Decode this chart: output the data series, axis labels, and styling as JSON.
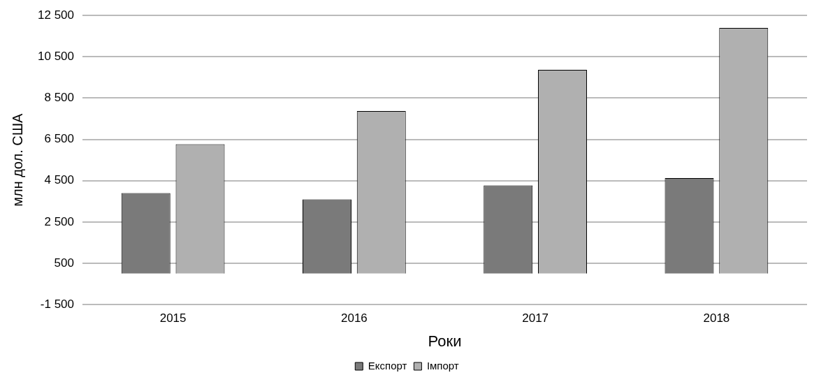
{
  "chart_data": {
    "type": "bar",
    "xlabel": "Роки",
    "ylabel": "млн дол. США",
    "categories": [
      "2015",
      "2016",
      "2017",
      "2018"
    ],
    "series": [
      {
        "name": "Експорт",
        "color": "#7a7a7a",
        "values": [
          3900,
          3600,
          4270,
          4630
        ]
      },
      {
        "name": "Імпорт",
        "color": "#b0b0b0",
        "values": [
          6270,
          7870,
          9870,
          11900
        ]
      }
    ],
    "ylim": [
      -1500,
      12500
    ],
    "yticks": [
      {
        "value": -1500,
        "label": "-1 500"
      },
      {
        "value": 500,
        "label": "500"
      },
      {
        "value": 2500,
        "label": "2 500"
      },
      {
        "value": 4500,
        "label": "4 500"
      },
      {
        "value": 6500,
        "label": "6 500"
      },
      {
        "value": 8500,
        "label": "8 500"
      },
      {
        "value": 10500,
        "label": "10 500"
      },
      {
        "value": 12500,
        "label": "12 500"
      }
    ],
    "grid": "y",
    "legend": "bottom"
  }
}
